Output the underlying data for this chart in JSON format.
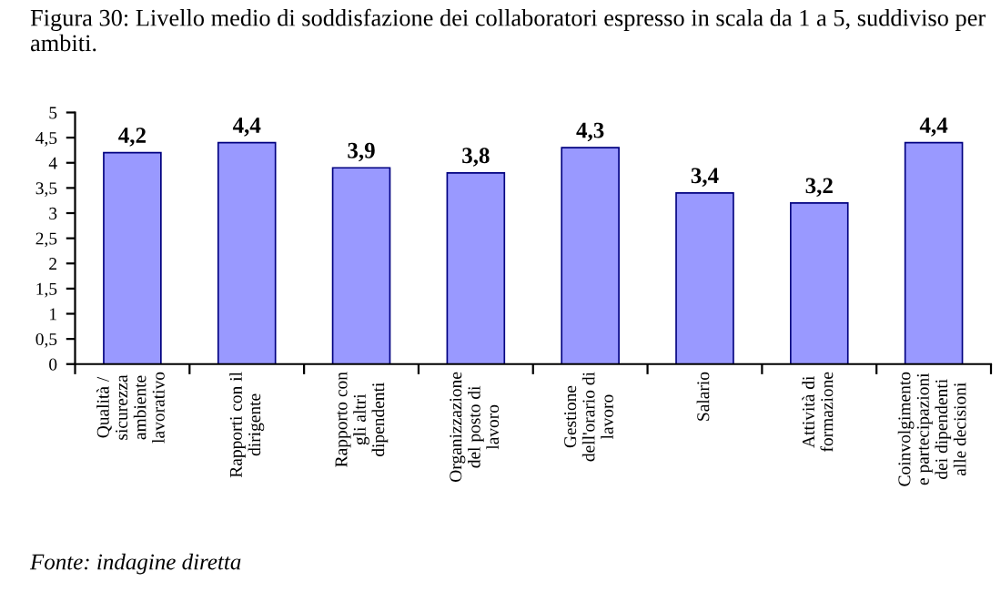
{
  "chart_data": {
    "type": "bar",
    "title": "Figura 30: Livello medio di soddisfazione dei collaboratori espresso in scala da 1 a 5, suddiviso per ambiti.",
    "categories": [
      "Qualità /\nsicurezza\nambiente\nlavorativo",
      "Rapporti con il\ndirigente",
      "Rapporto con\ngli altri\ndipendenti",
      "Organizzazione\ndel posto di\nlavoro",
      "Gestione\ndell'orario di\nlavoro",
      "Salario",
      "Attività di\nformazione",
      "Coinvolgimento\ne partecipazioni\ndei dipendenti\nalle decisioni"
    ],
    "values": [
      4.2,
      4.4,
      3.9,
      3.8,
      4.3,
      3.4,
      3.2,
      4.4
    ],
    "value_labels": [
      "4,2",
      "4,4",
      "3,9",
      "3,8",
      "4,3",
      "3,4",
      "3,2",
      "4,4"
    ],
    "color": "#9999ff",
    "ylim": [
      0,
      5
    ],
    "yticks": [
      0,
      {
        "value": 0.5,
        "label": "0,5"
      },
      1,
      {
        "value": 1.5,
        "label": "1,5"
      },
      2,
      {
        "value": 2.5,
        "label": "2,5"
      },
      3,
      {
        "value": 3.5,
        "label": "3,5"
      },
      4,
      {
        "value": 4.5,
        "label": "4,5"
      },
      5
    ],
    "grid": false,
    "legend": false,
    "annotations": [
      "Fonte: indagine diretta"
    ]
  }
}
